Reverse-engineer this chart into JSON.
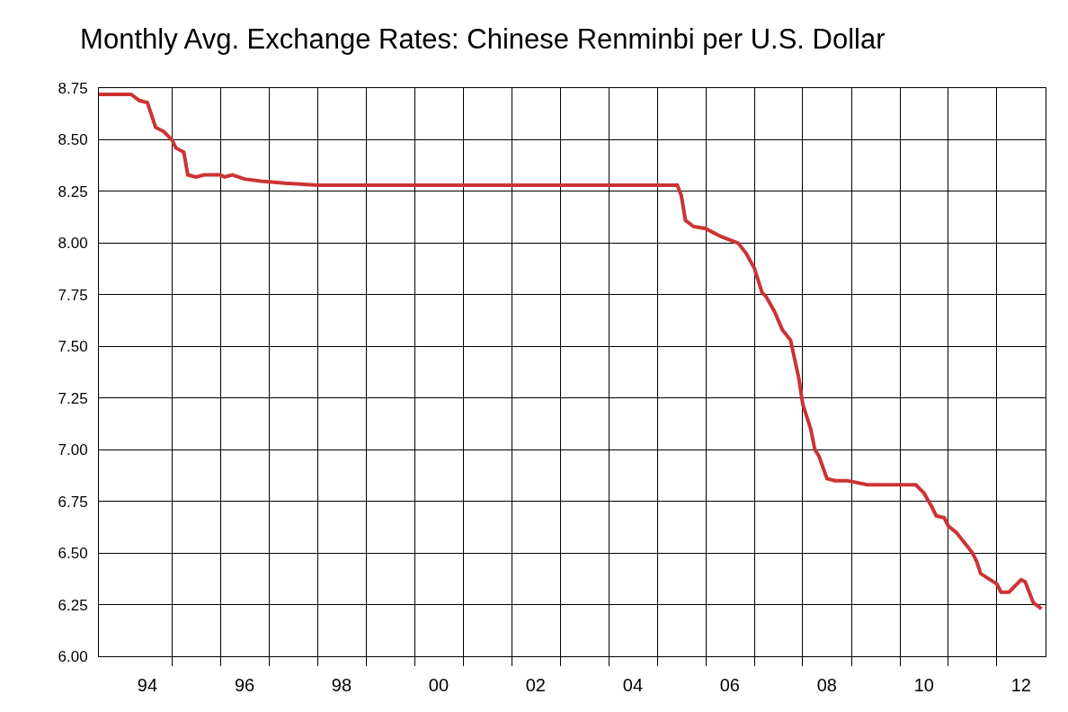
{
  "chart_data": {
    "type": "line",
    "title": "Monthly Avg. Exchange Rates: Chinese Renminbi per U.S. Dollar",
    "x": [
      "1993-07",
      "1994-03",
      "1994-05",
      "1994-07",
      "1994-09",
      "1994-11",
      "1995-01",
      "1995-02",
      "1995-04",
      "1995-05",
      "1995-07",
      "1995-09",
      "1996-01",
      "1996-02",
      "1996-04",
      "1996-07",
      "1996-11",
      "1997-05",
      "1998-01",
      "2000-01",
      "2002-01",
      "2004-01",
      "2005-06",
      "2005-07",
      "2005-08",
      "2005-10",
      "2006-01",
      "2006-03",
      "2006-05",
      "2006-09",
      "2006-11",
      "2007-01",
      "2007-03",
      "2007-04",
      "2007-06",
      "2007-08",
      "2007-10",
      "2007-12",
      "2008-01",
      "2008-03",
      "2008-04",
      "2008-05",
      "2008-07",
      "2008-09",
      "2008-12",
      "2009-05",
      "2010-05",
      "2010-07",
      "2010-09",
      "2010-10",
      "2010-12",
      "2011-01",
      "2011-03",
      "2011-05",
      "2011-07",
      "2011-08",
      "2011-09",
      "2012-01",
      "2012-02",
      "2012-04",
      "2012-07",
      "2012-08",
      "2012-10",
      "2012-12"
    ],
    "series": [
      {
        "color": "#cc3333",
        "values": [
          8.72,
          8.72,
          8.69,
          8.68,
          8.56,
          8.54,
          8.5,
          8.46,
          8.44,
          8.33,
          8.32,
          8.33,
          8.33,
          8.32,
          8.33,
          8.31,
          8.3,
          8.29,
          8.28,
          8.28,
          8.28,
          8.28,
          8.28,
          8.23,
          8.11,
          8.08,
          8.07,
          8.05,
          8.03,
          8.0,
          7.95,
          7.88,
          7.76,
          7.74,
          7.67,
          7.58,
          7.53,
          7.35,
          7.22,
          7.1,
          7.0,
          6.97,
          6.86,
          6.85,
          6.85,
          6.83,
          6.83,
          6.79,
          6.72,
          6.68,
          6.67,
          6.63,
          6.6,
          6.55,
          6.5,
          6.46,
          6.4,
          6.35,
          6.31,
          6.31,
          6.37,
          6.36,
          6.26,
          6.23
        ]
      }
    ],
    "xlim": [
      "1993-07-01",
      "2013-01-01"
    ],
    "xticks": [
      {
        "value": "1994-07-01",
        "label": "94"
      },
      {
        "value": "1996-07-01",
        "label": "96"
      },
      {
        "value": "1998-07-01",
        "label": "98"
      },
      {
        "value": "2000-07-01",
        "label": "00"
      },
      {
        "value": "2002-07-01",
        "label": "02"
      },
      {
        "value": "2004-07-01",
        "label": "04"
      },
      {
        "value": "2006-07-01",
        "label": "06"
      },
      {
        "value": "2008-07-01",
        "label": "08"
      },
      {
        "value": "2010-07-01",
        "label": "10"
      },
      {
        "value": "2012-07-01",
        "label": "12"
      },
      {
        "value": "1995-01-01",
        "label": null
      },
      {
        "value": "1996-01-01",
        "label": null
      },
      {
        "value": "1997-01-01",
        "label": null
      },
      {
        "value": "1998-01-01",
        "label": null
      },
      {
        "value": "1999-01-01",
        "label": null
      },
      {
        "value": "2000-01-01",
        "label": null
      },
      {
        "value": "2001-01-01",
        "label": null
      },
      {
        "value": "2002-01-01",
        "label": null
      },
      {
        "value": "2003-01-01",
        "label": null
      },
      {
        "value": "2004-01-01",
        "label": null
      },
      {
        "value": "2005-01-01",
        "label": null
      },
      {
        "value": "2006-01-01",
        "label": null
      },
      {
        "value": "2007-01-01",
        "label": null
      },
      {
        "value": "2008-01-01",
        "label": null
      },
      {
        "value": "2009-01-01",
        "label": null
      },
      {
        "value": "2010-01-01",
        "label": null
      },
      {
        "value": "2011-01-01",
        "label": null
      },
      {
        "value": "2012-01-01",
        "label": null
      }
    ],
    "ylim": [
      6.0,
      8.75
    ],
    "yticks": [
      {
        "value": 6.0,
        "label": "6.00"
      },
      {
        "value": 6.25,
        "label": "6.25"
      },
      {
        "value": 6.5,
        "label": "6.50"
      },
      {
        "value": 6.75,
        "label": "6.75"
      },
      {
        "value": 7.0,
        "label": "7.00"
      },
      {
        "value": 7.25,
        "label": "7.25"
      },
      {
        "value": 7.5,
        "label": "7.50"
      },
      {
        "value": 7.75,
        "label": "7.75"
      },
      {
        "value": 8.0,
        "label": "8.00"
      },
      {
        "value": 8.25,
        "label": "8.25"
      },
      {
        "value": 8.5,
        "label": "8.50"
      },
      {
        "value": 8.75,
        "label": "8.75"
      }
    ],
    "grid": true,
    "marker": "none",
    "line_style": "solid"
  }
}
